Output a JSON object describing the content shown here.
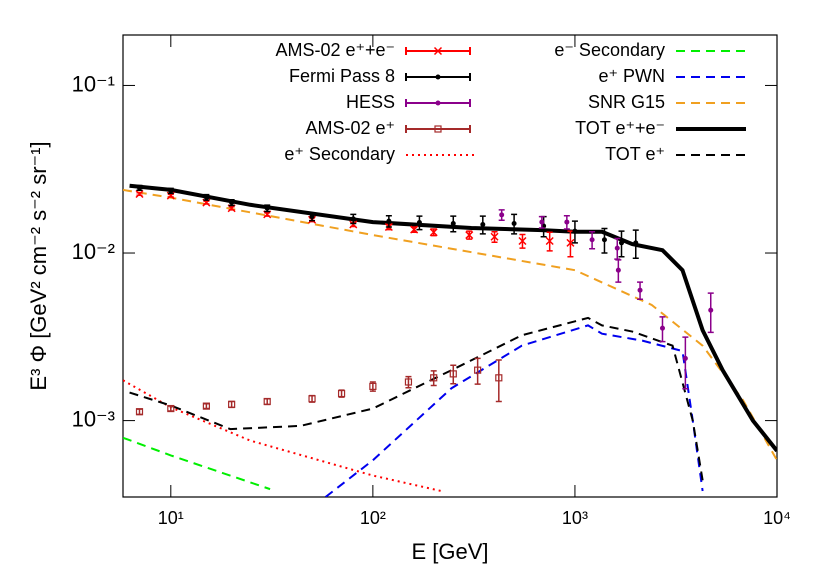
{
  "chart_data": {
    "type": "line",
    "xlabel": "E [GeV]",
    "ylabel": "E³ Φ [GeV² cm⁻² s⁻² sr⁻¹]",
    "xscale": "log",
    "yscale": "log",
    "xlim": [
      5.8,
      10000
    ],
    "ylim": [
      0.00035,
      0.2
    ],
    "xticks": [
      {
        "value": 10,
        "label": "10¹"
      },
      {
        "value": 100,
        "label": "10²"
      },
      {
        "value": 1000,
        "label": "10³"
      },
      {
        "value": 10000,
        "label": "10⁴"
      }
    ],
    "yticks": [
      {
        "value": 0.001,
        "label": "10⁻³"
      },
      {
        "value": 0.01,
        "label": "10⁻²"
      },
      {
        "value": 0.1,
        "label": "10⁻¹"
      }
    ],
    "legend": "top",
    "series": [
      {
        "name": "AMS-02 e⁺+e⁻",
        "color": "#ff0000",
        "style": "points",
        "marker": "x",
        "x": [
          7,
          10,
          15,
          20,
          30,
          50,
          80,
          120,
          160,
          200,
          300,
          400,
          550,
          750,
          950
        ],
        "values": [
          0.0225,
          0.022,
          0.02,
          0.0185,
          0.017,
          0.0158,
          0.0148,
          0.0143,
          0.0138,
          0.0133,
          0.0128,
          0.0125,
          0.0118,
          0.0118,
          0.0115
        ],
        "errors": [
          0.0004,
          0.0004,
          0.0004,
          0.0004,
          0.0004,
          0.0004,
          0.0004,
          0.0005,
          0.0005,
          0.0006,
          0.0007,
          0.0009,
          0.0011,
          0.0015,
          0.002
        ]
      },
      {
        "name": "Fermi Pass 8",
        "color": "#000000",
        "style": "points",
        "marker": "dot",
        "x": [
          7,
          10,
          15,
          20,
          30,
          50,
          80,
          120,
          170,
          250,
          350,
          500,
          700,
          1000,
          1400,
          1700,
          2000
        ],
        "values": [
          0.0245,
          0.0235,
          0.0215,
          0.02,
          0.0185,
          0.0165,
          0.016,
          0.0155,
          0.0152,
          0.015,
          0.0148,
          0.015,
          0.0145,
          0.0135,
          0.012,
          0.0115,
          0.0115
        ],
        "errors": [
          0.0008,
          0.0008,
          0.0008,
          0.0008,
          0.0008,
          0.0009,
          0.001,
          0.0012,
          0.0014,
          0.0016,
          0.0018,
          0.002,
          0.002,
          0.002,
          0.002,
          0.002,
          0.0022
        ]
      },
      {
        "name": "HESS",
        "color": "#8b008b",
        "style": "points",
        "marker": "dot",
        "x": [
          434,
          686,
          912,
          1216,
          1620,
          1640,
          2100,
          2712,
          3520,
          4700
        ],
        "values": [
          0.0169,
          0.0153,
          0.0153,
          0.012,
          0.0107,
          0.0079,
          0.006,
          0.00356,
          0.00235,
          0.00456
        ],
        "errors": [
          0.0012,
          0.0012,
          0.0014,
          0.0014,
          0.0015,
          0.0012,
          0.0007,
          0.0006,
          0.0008,
          0.0012
        ]
      },
      {
        "name": "AMS-02 e⁺",
        "color": "#a52a2a",
        "style": "points",
        "marker": "square",
        "x": [
          7,
          10,
          15,
          20,
          30,
          50,
          70,
          100,
          150,
          200,
          250,
          330,
          420
        ],
        "values": [
          0.00113,
          0.00118,
          0.00122,
          0.00125,
          0.0013,
          0.00135,
          0.00145,
          0.0016,
          0.0017,
          0.0018,
          0.0019,
          0.002,
          0.0018
        ],
        "errors": [
          4e-05,
          4e-05,
          4e-05,
          5e-05,
          5e-05,
          6e-05,
          7e-05,
          0.0001,
          0.00013,
          0.00018,
          0.00024,
          0.00035,
          0.0005
        ]
      },
      {
        "name": "e⁺ Secondary",
        "color": "#ff0000",
        "style": "line",
        "dash": "dotted",
        "x": [
          5.8,
          10,
          24.7,
          100,
          218
        ],
        "values": [
          0.00174,
          0.0012,
          0.00076,
          0.00047,
          0.00038
        ]
      },
      {
        "name": "e⁻ Secondary",
        "color": "#00ee00",
        "style": "line",
        "dash": "dashed",
        "x": [
          5.8,
          10,
          31
        ],
        "values": [
          0.00079,
          0.00062,
          0.00039
        ]
      },
      {
        "name": "e⁺ PWN",
        "color": "#0000ee",
        "style": "line",
        "dash": "dashed",
        "x": [
          58.3,
          100,
          245,
          546,
          1161,
          1361,
          2155,
          3406,
          3829,
          4285
        ],
        "values": [
          0.00035,
          0.00058,
          0.00156,
          0.0028,
          0.0037,
          0.0033,
          0.003,
          0.0026,
          0.001,
          0.00038
        ]
      },
      {
        "name": "SNR G15",
        "color": "#f0a020",
        "style": "line",
        "dash": "dashed",
        "x": [
          5.8,
          10,
          100,
          1000,
          2400,
          4285,
          6800,
          10000
        ],
        "values": [
          0.0238,
          0.0214,
          0.0128,
          0.0079,
          0.0049,
          0.0028,
          0.00132,
          0.00058
        ]
      },
      {
        "name": "TOT e⁺+e⁻",
        "color": "#000000",
        "style": "line",
        "dash": "solid",
        "width": 4,
        "x": [
          6.25,
          10,
          24.7,
          100,
          307,
          686,
          1000,
          1361,
          1922,
          2712,
          3406,
          4285,
          5383,
          7600,
          10000
        ],
        "values": [
          0.0252,
          0.0238,
          0.0194,
          0.0153,
          0.0141,
          0.0137,
          0.0134,
          0.0134,
          0.0113,
          0.0104,
          0.0079,
          0.00346,
          0.002,
          0.001,
          0.00066
        ]
      },
      {
        "name": "TOT e⁺",
        "color": "#000000",
        "style": "line",
        "dash": "dashed",
        "x": [
          6.25,
          10,
          19.7,
          43.9,
          100,
          245,
          546,
          1161,
          1361,
          1922,
          3042,
          3829,
          4285
        ],
        "values": [
          0.00147,
          0.00123,
          0.00089,
          0.00093,
          0.00118,
          0.002,
          0.00323,
          0.0041,
          0.0037,
          0.0034,
          0.0028,
          0.001,
          0.00044
        ]
      }
    ]
  }
}
